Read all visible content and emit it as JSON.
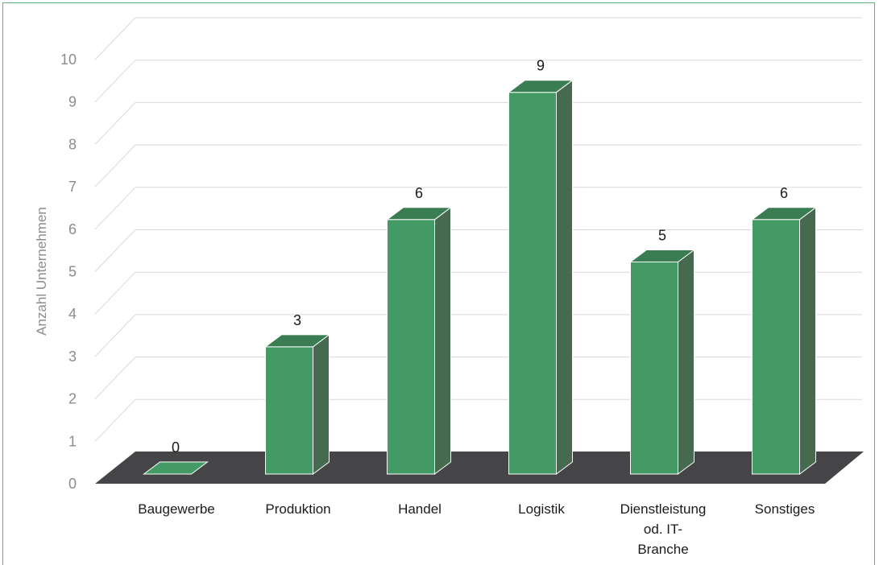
{
  "chart_data": {
    "type": "bar",
    "categories": [
      "Baugewerbe",
      "Produktion",
      "Handel",
      "Logistik",
      "Dienstleistung od. IT-Branche",
      "Sonstiges"
    ],
    "category_lines": [
      [
        "Baugewerbe"
      ],
      [
        "Produktion"
      ],
      [
        "Handel"
      ],
      [
        "Logistik"
      ],
      [
        "Dienstleistung",
        "od. IT-",
        "Branche"
      ],
      [
        "Sonstiges"
      ]
    ],
    "values": [
      0,
      3,
      6,
      9,
      5,
      6
    ],
    "title": "",
    "xlabel": "",
    "ylabel": "Anzahl Unternehmen",
    "ylim": [
      0,
      10
    ],
    "yticks": [
      0,
      1,
      2,
      3,
      4,
      5,
      6,
      7,
      8,
      9,
      10
    ],
    "grid": true,
    "data_labels": true,
    "style": "3d-column",
    "colors": {
      "bar_front": "#449a64",
      "bar_top": "#3a7d52",
      "bar_side": "#466a50",
      "floor": "#454547",
      "grid": "#d9d9d9",
      "frame": "#5fb07c"
    }
  }
}
